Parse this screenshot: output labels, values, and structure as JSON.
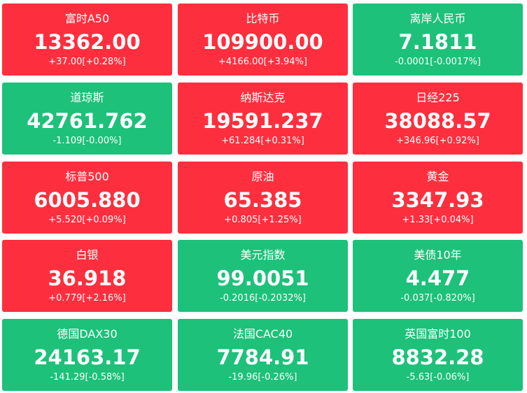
{
  "tiles": [
    {
      "name": "富时A50",
      "price": "13362.00",
      "change": "+37.00[+0.28%]",
      "color": "#fd2f3e"
    },
    {
      "name": "比特币",
      "price": "109900.00",
      "change": "+4166.00[+3.94%]",
      "color": "#fd2f3e"
    },
    {
      "name": "离岸人民币",
      "price": "7.1811",
      "change": "-0.0001[-0.0017%]",
      "color": "#1dc17a"
    },
    {
      "name": "道琼斯",
      "price": "42761.762",
      "change": "-1.109[-0.00%]",
      "color": "#1dc17a"
    },
    {
      "name": "纳斯达克",
      "price": "19591.237",
      "change": "+61.284[+0.31%]",
      "color": "#fd2f3e"
    },
    {
      "name": "日经225",
      "price": "38088.57",
      "change": "+346.96[+0.92%]",
      "color": "#fd2f3e"
    },
    {
      "name": "标普500",
      "price": "6005.880",
      "change": "+5.520[+0.09%]",
      "color": "#fd2f3e"
    },
    {
      "name": "原油",
      "price": "65.385",
      "change": "+0.805[+1.25%]",
      "color": "#fd2f3e"
    },
    {
      "name": "黄金",
      "price": "3347.93",
      "change": "+1.33[+0.04%]",
      "color": "#fd2f3e"
    },
    {
      "name": "白银",
      "price": "36.918",
      "change": "+0.779[+2.16%]",
      "color": "#fd2f3e"
    },
    {
      "name": "美元指数",
      "price": "99.0051",
      "change": "-0.2016[-0.2032%]",
      "color": "#1dc17a"
    },
    {
      "name": "美债10年",
      "price": "4.477",
      "change": "-0.037[-0.820%]",
      "color": "#1dc17a"
    },
    {
      "name": "德国DAX30",
      "price": "24163.17",
      "change": "-141.29[-0.58%]",
      "color": "#1dc17a"
    },
    {
      "name": "法国CAC40",
      "price": "7784.91",
      "change": "-19.96[-0.26%]",
      "color": "#1dc17a"
    },
    {
      "name": "英国富时100",
      "price": "8832.28",
      "change": "-5.63[-0.06%]",
      "color": "#1dc17a"
    }
  ]
}
